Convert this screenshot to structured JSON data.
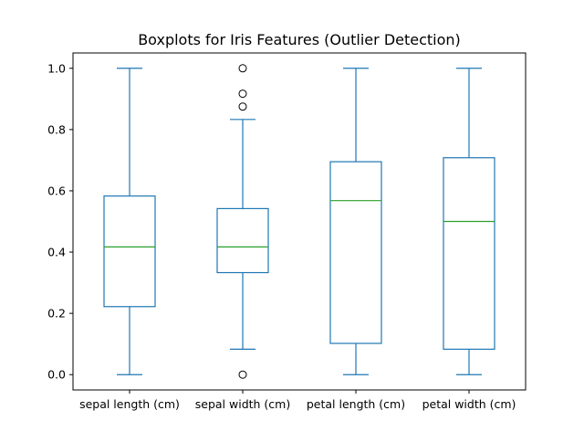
{
  "chart_data": {
    "type": "boxplot",
    "title": "Boxplots for Iris Features (Outlier Detection)",
    "xlabel": "",
    "ylabel": "",
    "ylim": [
      -0.05,
      1.05
    ],
    "yticks": [
      0.0,
      0.2,
      0.4,
      0.6,
      0.8,
      1.0
    ],
    "ytick_labels": [
      "0.0",
      "0.2",
      "0.4",
      "0.6",
      "0.8",
      "1.0"
    ],
    "grid": false,
    "categories": [
      "sepal length (cm)",
      "sepal width (cm)",
      "petal length (cm)",
      "petal width (cm)"
    ],
    "boxes": [
      {
        "name": "sepal length (cm)",
        "whisker_low": 0.0,
        "q1": 0.222,
        "median": 0.417,
        "q3": 0.583,
        "whisker_high": 1.0,
        "outliers": []
      },
      {
        "name": "sepal width (cm)",
        "whisker_low": 0.083,
        "q1": 0.333,
        "median": 0.417,
        "q3": 0.542,
        "whisker_high": 0.833,
        "outliers": [
          0.0,
          0.875,
          0.917,
          1.0
        ]
      },
      {
        "name": "petal length (cm)",
        "whisker_low": 0.0,
        "q1": 0.102,
        "median": 0.568,
        "q3": 0.695,
        "whisker_high": 1.0,
        "outliers": []
      },
      {
        "name": "petal width (cm)",
        "whisker_low": 0.0,
        "q1": 0.083,
        "median": 0.5,
        "q3": 0.708,
        "whisker_high": 1.0,
        "outliers": []
      }
    ],
    "colors": {
      "box": "#1f77b4",
      "median": "#2ca02c",
      "outlier": "#000000",
      "axis": "#000000"
    }
  }
}
